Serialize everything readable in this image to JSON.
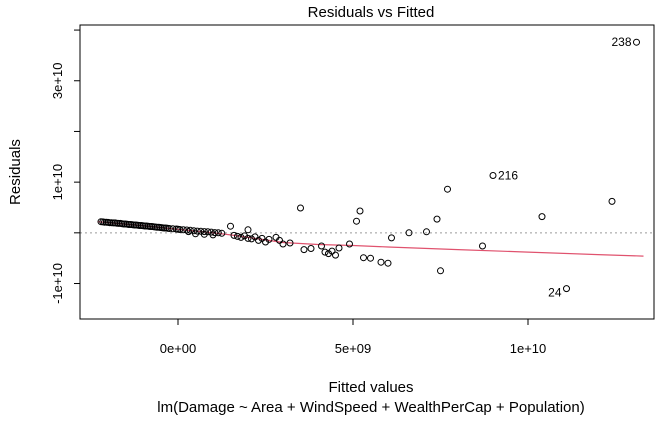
{
  "chart_data": {
    "type": "scatter",
    "title": "Residuals vs Fitted",
    "xlabel": "Fitted values",
    "subtitle": "lm(Damage ~ Area + WindSpeed + WealthPerCap + Population)",
    "ylabel": "Residuals",
    "xlim": [
      -2800000000,
      13600000000
    ],
    "ylim": [
      -17000000000,
      41000000000
    ],
    "x_ticks": [
      {
        "value": 0,
        "label": "0e+00"
      },
      {
        "value": 5000000000,
        "label": "5e+09"
      },
      {
        "value": 10000000000,
        "label": "1e+10"
      }
    ],
    "y_ticks": [
      {
        "value": -10000000000,
        "label": "-1e+10"
      },
      {
        "value": 10000000000,
        "label": "1e+10"
      },
      {
        "value": 30000000000,
        "label": "3e+10"
      }
    ],
    "zero_line": true,
    "grid": false,
    "smoother_color": "#e0526e",
    "zero_line_color": "#9a9a9a",
    "labeled_points": [
      {
        "label": "238",
        "x": 13100000000,
        "y": 37600000000
      },
      {
        "label": "216",
        "x": 9000000000,
        "y": 11300000000
      },
      {
        "label": "24",
        "x": 11100000000,
        "y": -11000000000
      }
    ],
    "points": [
      [
        -2200000000,
        2200000000
      ],
      [
        -2150000000,
        2150000000
      ],
      [
        -2100000000,
        2100000000
      ],
      [
        -2050000000,
        2100000000
      ],
      [
        -2000000000,
        2050000000
      ],
      [
        -1950000000,
        2000000000
      ],
      [
        -1900000000,
        2000000000
      ],
      [
        -1850000000,
        1950000000
      ],
      [
        -1800000000,
        1950000000
      ],
      [
        -1750000000,
        1900000000
      ],
      [
        -1700000000,
        1850000000
      ],
      [
        -1650000000,
        1850000000
      ],
      [
        -1600000000,
        1800000000
      ],
      [
        -1550000000,
        1750000000
      ],
      [
        -1500000000,
        1750000000
      ],
      [
        -1450000000,
        1700000000
      ],
      [
        -1400000000,
        1650000000
      ],
      [
        -1350000000,
        1650000000
      ],
      [
        -1300000000,
        1600000000
      ],
      [
        -1250000000,
        1550000000
      ],
      [
        -1200000000,
        1550000000
      ],
      [
        -1150000000,
        1500000000
      ],
      [
        -1100000000,
        1450000000
      ],
      [
        -1050000000,
        1450000000
      ],
      [
        -1000000000,
        1400000000
      ],
      [
        -950000000,
        1350000000
      ],
      [
        -900000000,
        1350000000
      ],
      [
        -850000000,
        1300000000
      ],
      [
        -800000000,
        1250000000
      ],
      [
        -750000000,
        1250000000
      ],
      [
        -700000000,
        1200000000
      ],
      [
        -650000000,
        1150000000
      ],
      [
        -600000000,
        1100000000
      ],
      [
        -550000000,
        1100000000
      ],
      [
        -500000000,
        1050000000
      ],
      [
        -450000000,
        1000000000
      ],
      [
        -400000000,
        950000000
      ],
      [
        -350000000,
        950000000
      ],
      [
        -300000000,
        900000000
      ],
      [
        -250000000,
        850000000
      ],
      [
        -150000000,
        800000000
      ],
      [
        -50000000,
        750000000
      ],
      [
        0,
        700000000
      ],
      [
        50000000,
        650000000
      ],
      [
        150000000,
        600000000
      ],
      [
        250000000,
        550000000
      ],
      [
        350000000,
        500000000
      ],
      [
        450000000,
        400000000
      ],
      [
        550000000,
        350000000
      ],
      [
        650000000,
        300000000
      ],
      [
        750000000,
        250000000
      ],
      [
        850000000,
        200000000
      ],
      [
        950000000,
        150000000
      ],
      [
        1050000000,
        50000000
      ],
      [
        1150000000,
        0
      ],
      [
        1250000000,
        -100000000
      ],
      [
        2000000000,
        600000000
      ],
      [
        300000000,
        250000000
      ],
      [
        500000000,
        -200000000
      ],
      [
        750000000,
        -300000000
      ],
      [
        1000000000,
        -400000000
      ],
      [
        1500000000,
        1300000000
      ],
      [
        1600000000,
        -500000000
      ],
      [
        1700000000,
        -700000000
      ],
      [
        1800000000,
        -900000000
      ],
      [
        1900000000,
        -600000000
      ],
      [
        2000000000,
        -1100000000
      ],
      [
        2100000000,
        -1200000000
      ],
      [
        2200000000,
        -800000000
      ],
      [
        2300000000,
        -1500000000
      ],
      [
        2400000000,
        -1100000000
      ],
      [
        2500000000,
        -1800000000
      ],
      [
        2600000000,
        -1300000000
      ],
      [
        2800000000,
        -900000000
      ],
      [
        2900000000,
        -1500000000
      ],
      [
        3000000000,
        -2200000000
      ],
      [
        3200000000,
        -2000000000
      ],
      [
        3500000000,
        4900000000
      ],
      [
        3600000000,
        -3300000000
      ],
      [
        3800000000,
        -3100000000
      ],
      [
        4100000000,
        -2600000000
      ],
      [
        4200000000,
        -3800000000
      ],
      [
        4300000000,
        -4100000000
      ],
      [
        4400000000,
        -3600000000
      ],
      [
        4500000000,
        -4400000000
      ],
      [
        4600000000,
        -3000000000
      ],
      [
        4900000000,
        -2200000000
      ],
      [
        5100000000,
        2300000000
      ],
      [
        5200000000,
        4300000000
      ],
      [
        5300000000,
        -4900000000
      ],
      [
        5500000000,
        -5000000000
      ],
      [
        5800000000,
        -5800000000
      ],
      [
        6000000000,
        -6000000000
      ],
      [
        6100000000,
        -1000000000
      ],
      [
        6600000000,
        0
      ],
      [
        7100000000,
        200000000
      ],
      [
        7400000000,
        2700000000
      ],
      [
        7500000000,
        -7500000000
      ],
      [
        7700000000,
        8600000000
      ],
      [
        8700000000,
        -2600000000
      ],
      [
        10400000000,
        3200000000
      ],
      [
        12400000000,
        6200000000
      ]
    ],
    "smoother": [
      [
        -2300000000,
        2200000000
      ],
      [
        -1000000000,
        1400000000
      ],
      [
        0,
        700000000
      ],
      [
        1000000000,
        0
      ],
      [
        1500000000,
        -400000000
      ],
      [
        2000000000,
        -900000000
      ],
      [
        2500000000,
        -1400000000
      ],
      [
        3000000000,
        -1900000000
      ],
      [
        4000000000,
        -2300000000
      ],
      [
        5000000000,
        -2500000000
      ],
      [
        6000000000,
        -2800000000
      ],
      [
        8000000000,
        -3300000000
      ],
      [
        10000000000,
        -3800000000
      ],
      [
        12000000000,
        -4300000000
      ],
      [
        13300000000,
        -4600000000
      ]
    ]
  }
}
